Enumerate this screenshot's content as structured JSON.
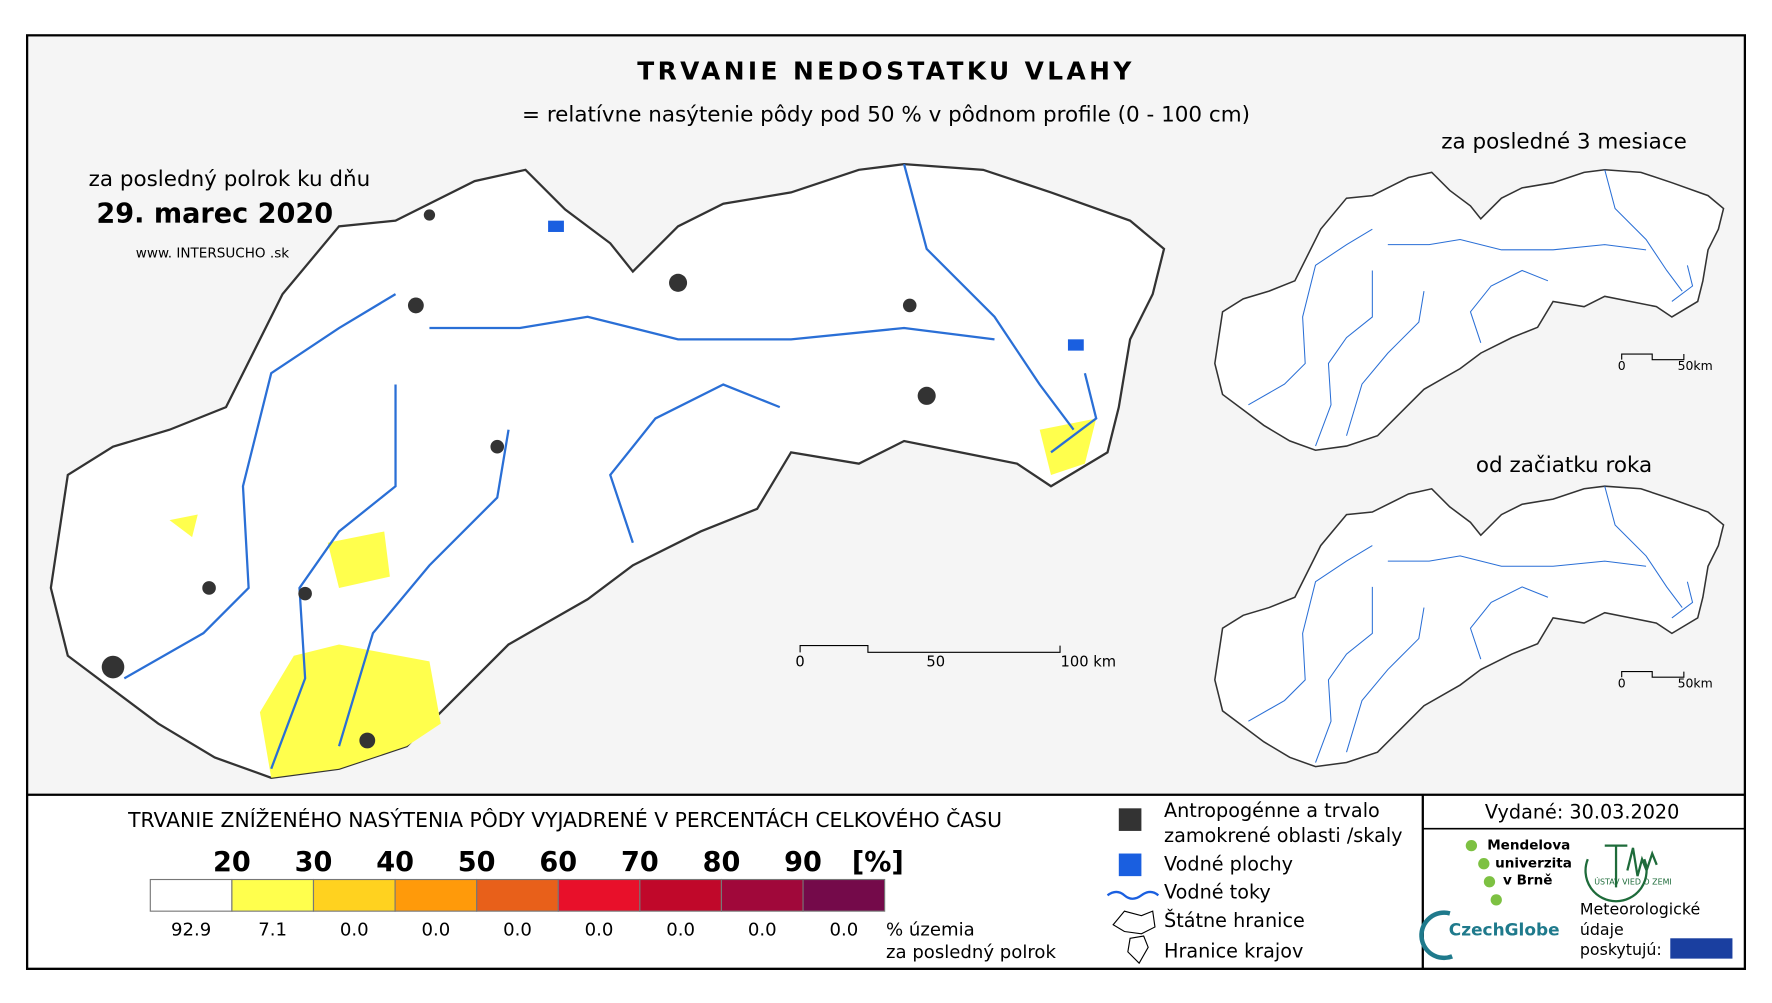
{
  "header": {
    "title": "TRVANIE NEDOSTATKU VLAHY",
    "subtitle": "= relatívne nasýtenie pôdy pod 50 % v pôdnom profile (0 - 100 cm)"
  },
  "main_map": {
    "period": "za posledný polrok ku dňu",
    "date": "29. marec 2020",
    "website": "www. INTERSUCHO .sk",
    "scale": [
      "0",
      "50",
      "100 km"
    ]
  },
  "insets": [
    {
      "label": "za posledné 3 mesiace",
      "scale": [
        "0",
        "50km"
      ]
    },
    {
      "label": "od začiatku roka",
      "scale": [
        "0",
        "50km"
      ]
    }
  ],
  "legend": {
    "title": "TRVANIE ZNÍŽENÉHO NASÝTENIA PÔDY VYJADRENÉ V PERCENTÁCH CELKOVÉHO ČASU",
    "colors": [
      "#ffffff",
      "#ffff4d",
      "#ffd21f",
      "#ff9a0a",
      "#e8601a",
      "#e8102a",
      "#c0082a",
      "#a0083a",
      "#740a4a"
    ],
    "thresholds": [
      20,
      30,
      40,
      50,
      60,
      70,
      80,
      90
    ],
    "unit": "[%]",
    "shares": [
      "92.9",
      "7.1",
      "0.0",
      "0.0",
      "0.0",
      "0.0",
      "0.0",
      "0.0",
      "0.0"
    ],
    "share_label": [
      "% územia",
      "za posledný polrok"
    ]
  },
  "key": [
    {
      "lines": [
        "Antropogénne a trvalo",
        "zamokrené oblasti /skaly"
      ]
    },
    {
      "lines": [
        "Vodné plochy"
      ]
    },
    {
      "lines": [
        "Vodné toky"
      ]
    },
    {
      "lines": [
        "Štátne hranice"
      ]
    },
    {
      "lines": [
        "Hranice krajov"
      ]
    }
  ],
  "issued": "Vydané: 30.03.2020",
  "logos": {
    "mendel": [
      "Mendelova",
      "univerzita",
      "v Brně"
    ],
    "czechglobe": "CzechGlobe",
    "uvz": "ÚSTAV VIED O ZEMI",
    "meteo": [
      "Meteorologické",
      "údaje",
      "poskytujú:"
    ]
  }
}
